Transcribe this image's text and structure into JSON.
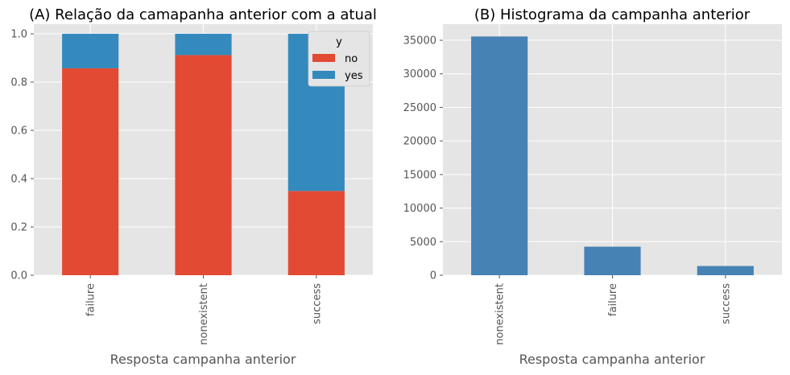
{
  "chart_data": [
    {
      "type": "bar",
      "stacked": true,
      "title": "(A) Relação da camapanha anterior com a atual",
      "xlabel": "Resposta campanha anterior",
      "ylabel": "",
      "categories": [
        "failure",
        "nonexistent",
        "success"
      ],
      "series": [
        {
          "name": "no",
          "values": [
            0.857,
            0.912,
            0.349
          ],
          "color": "#e24a33"
        },
        {
          "name": "yes",
          "values": [
            0.143,
            0.088,
            0.651
          ],
          "color": "#348abd"
        }
      ],
      "ylim": [
        0,
        1.04
      ],
      "yticks": [
        0.0,
        0.2,
        0.4,
        0.6,
        0.8,
        1.0
      ],
      "ytick_labels": [
        "0.0",
        "0.2",
        "0.4",
        "0.6",
        "0.8",
        "1.0"
      ],
      "legend": {
        "title": "y",
        "placement": "top-right"
      },
      "grid": true
    },
    {
      "type": "bar",
      "title": "(B) Histograma da campanha anterior",
      "xlabel": "Resposta campanha anterior",
      "ylabel": "",
      "categories": [
        "nonexistent",
        "failure",
        "success"
      ],
      "series": [
        {
          "values": [
            35563,
            4252,
            1373
          ],
          "color": "#4682b4"
        }
      ],
      "ylim": [
        0,
        37400
      ],
      "yticks": [
        0,
        5000,
        10000,
        15000,
        20000,
        25000,
        30000,
        35000
      ],
      "ytick_labels": [
        "0",
        "5000",
        "10000",
        "15000",
        "20000",
        "25000",
        "30000",
        "35000"
      ],
      "grid": true
    }
  ]
}
